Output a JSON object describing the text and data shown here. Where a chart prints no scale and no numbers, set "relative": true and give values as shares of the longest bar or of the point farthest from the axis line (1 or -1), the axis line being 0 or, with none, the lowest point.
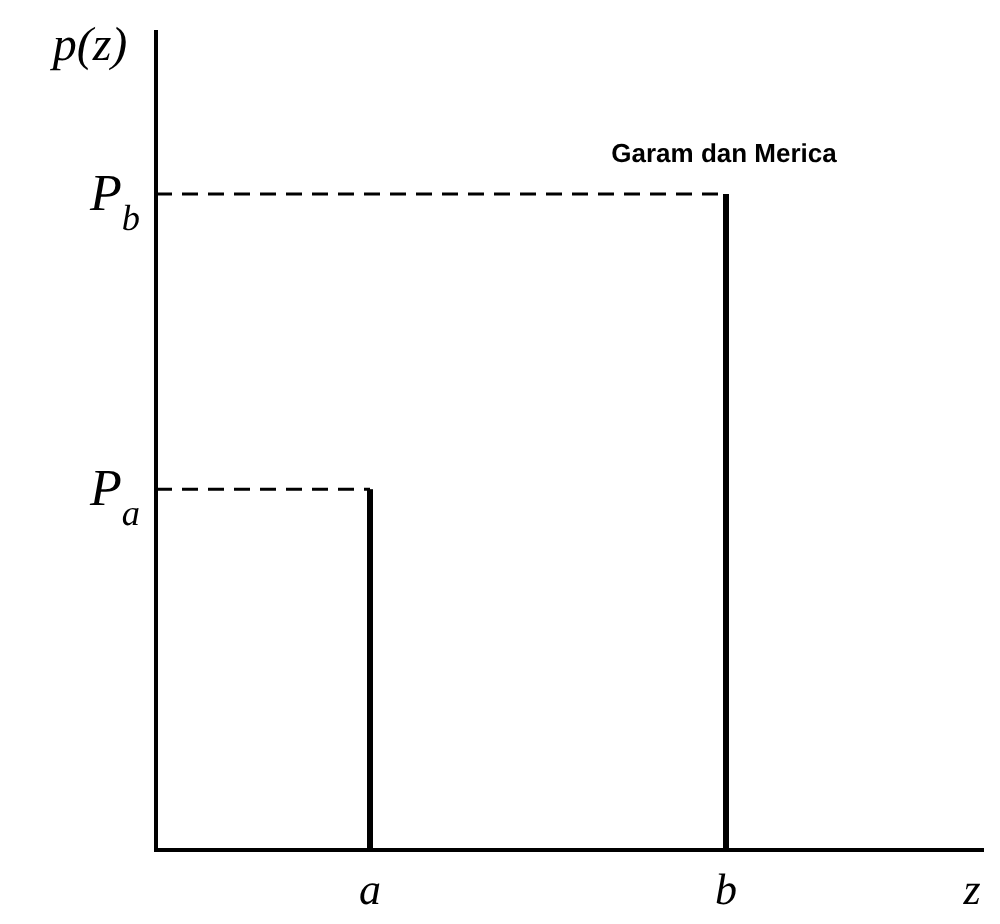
{
  "chart_data": {
    "type": "bar",
    "title": "Garam dan Merica",
    "xlabel": "z",
    "ylabel": "p(z)",
    "relative": true,
    "categories": [
      "a",
      "b"
    ],
    "values": [
      0.55,
      1
    ],
    "annotations": [
      "P$_{a}$",
      "P$_{b}$"
    ],
    "color": "#000000"
  }
}
